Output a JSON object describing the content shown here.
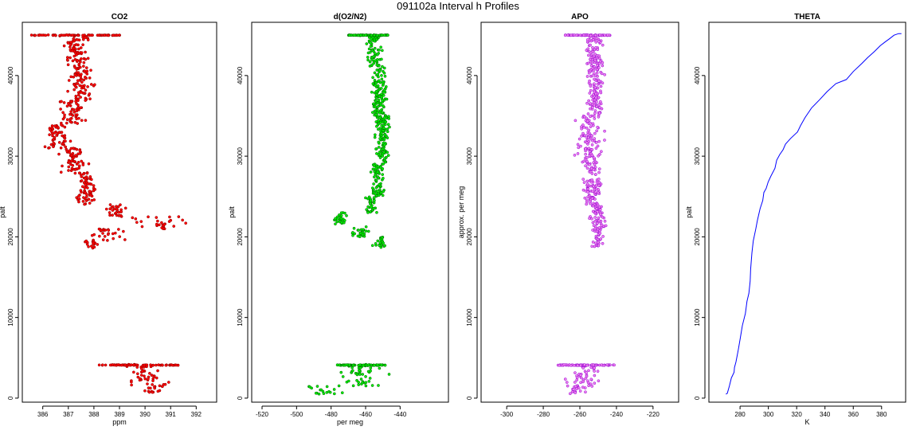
{
  "figure_title": "091102a   Interval h Profiles",
  "chart_data": [
    {
      "type": "scatter",
      "title": "CO2",
      "xlabel": "ppm",
      "ylabel": "palt",
      "xlim": [
        385.2,
        392.8
      ],
      "ylim": [
        -500,
        46600
      ],
      "xticks": [
        386,
        387,
        388,
        389,
        390,
        391,
        392
      ],
      "yticks": [
        0,
        10000,
        20000,
        30000,
        40000
      ],
      "color": "#ff0000",
      "outline": "#8b0000",
      "segments": [
        {
          "y": [
            44500,
            45000
          ],
          "xc": 387.3,
          "spread": 1.0
        },
        {
          "y": [
            41000,
            44500
          ],
          "xc": 387.3,
          "spread": 0.55
        },
        {
          "y": [
            37000,
            41000
          ],
          "xc": 387.5,
          "spread": 0.6
        },
        {
          "y": [
            34000,
            37000
          ],
          "xc": 387.2,
          "spread": 0.6
        },
        {
          "y": [
            31000,
            34000
          ],
          "xc": 386.6,
          "spread": 0.6
        },
        {
          "y": [
            28000,
            31000
          ],
          "xc": 387.2,
          "spread": 0.6
        },
        {
          "y": [
            26000,
            28000
          ],
          "xc": 387.7,
          "spread": 0.45
        },
        {
          "y": [
            24000,
            26000
          ],
          "xc": 387.7,
          "spread": 0.5
        },
        {
          "y": [
            22500,
            24000
          ],
          "xc": 388.9,
          "spread": 0.5
        },
        {
          "y": [
            21000,
            22500
          ],
          "xc": 390.5,
          "spread": 1.3
        },
        {
          "y": [
            19500,
            21000
          ],
          "xc": 388.5,
          "spread": 0.9
        },
        {
          "y": [
            18600,
            19500
          ],
          "xc": 387.9,
          "spread": 0.5
        },
        {
          "y": [
            3500,
            4200
          ],
          "xc": 389.6,
          "spread": 0.8
        },
        {
          "y": [
            1500,
            3500
          ],
          "xc": 390.0,
          "spread": 1.0
        },
        {
          "y": [
            700,
            1500
          ],
          "xc": 390.3,
          "spread": 0.9
        }
      ],
      "bands": [
        {
          "y": 45000,
          "x": [
            385.5,
            389.1
          ]
        },
        {
          "y": 4100,
          "x": [
            388.2,
            391.3
          ]
        }
      ]
    },
    {
      "type": "scatter",
      "title": "d(O2/N2)",
      "xlabel": "per meg",
      "ylabel": "palt",
      "xlim": [
        -526,
        -412
      ],
      "ylim": [
        -500,
        46600
      ],
      "xticks": [
        -520,
        -500,
        -480,
        -460,
        -440
      ],
      "yticks": [
        0,
        10000,
        20000,
        30000,
        40000
      ],
      "color": "#00ee00",
      "outline": "#006400",
      "segments": [
        {
          "y": [
            41000,
            45000
          ],
          "xc": -455,
          "spread": 5
        },
        {
          "y": [
            35000,
            41000
          ],
          "xc": -452,
          "spread": 5
        },
        {
          "y": [
            29000,
            35000
          ],
          "xc": -450,
          "spread": 6
        },
        {
          "y": [
            25000,
            29000
          ],
          "xc": -453,
          "spread": 5
        },
        {
          "y": [
            23000,
            25000
          ],
          "xc": -457,
          "spread": 4
        },
        {
          "y": [
            21500,
            23000
          ],
          "xc": -474,
          "spread": 6
        },
        {
          "y": [
            20000,
            21500
          ],
          "xc": -463,
          "spread": 6
        },
        {
          "y": [
            18600,
            20000
          ],
          "xc": -452,
          "spread": 4
        },
        {
          "y": [
            3500,
            4200
          ],
          "xc": -463,
          "spread": 10
        },
        {
          "y": [
            1500,
            3500
          ],
          "xc": -462,
          "spread": 15
        },
        {
          "y": [
            500,
            1500
          ],
          "xc": -485,
          "spread": 12
        }
      ],
      "bands": [
        {
          "y": 45000,
          "x": [
            -470,
            -447
          ]
        },
        {
          "y": 4100,
          "x": [
            -477,
            -448
          ]
        }
      ]
    },
    {
      "type": "scatter",
      "title": "APO",
      "xlabel": "",
      "ylabel": "approx. per meg",
      "xlim": [
        -314,
        -206
      ],
      "ylim": [
        -500,
        46600
      ],
      "xticks": [
        -300,
        -280,
        -260,
        -240,
        -220
      ],
      "yticks": [
        0,
        10000,
        20000,
        30000,
        40000
      ],
      "color": "#ee82ee",
      "outline": "#9400d3",
      "segments": [
        {
          "y": [
            41000,
            45000
          ],
          "xc": -252,
          "spread": 6
        },
        {
          "y": [
            35000,
            41000
          ],
          "xc": -252,
          "spread": 6
        },
        {
          "y": [
            29000,
            35000
          ],
          "xc": -255,
          "spread": 8
        },
        {
          "y": [
            24000,
            29000
          ],
          "xc": -253,
          "spread": 6
        },
        {
          "y": [
            18800,
            24000
          ],
          "xc": -250,
          "spread": 5
        },
        {
          "y": [
            3500,
            4200
          ],
          "xc": -257,
          "spread": 10
        },
        {
          "y": [
            1500,
            3500
          ],
          "xc": -258,
          "spread": 12
        },
        {
          "y": [
            500,
            1500
          ],
          "xc": -262,
          "spread": 10
        }
      ],
      "bands": [
        {
          "y": 45000,
          "x": [
            -269,
            -243
          ]
        },
        {
          "y": 4100,
          "x": [
            -272,
            -241
          ]
        }
      ]
    },
    {
      "type": "line",
      "title": "THETA",
      "xlabel": "K",
      "ylabel": "palt",
      "xlim": [
        258,
        397
      ],
      "ylim": [
        -500,
        46600
      ],
      "xticks": [
        280,
        300,
        320,
        340,
        360,
        380
      ],
      "yticks": [
        0,
        10000,
        20000,
        30000,
        40000
      ],
      "color": "#0000ff",
      "x": [
        270.0,
        271.0,
        272.5,
        274.0,
        275.5,
        276.0,
        277.0,
        278.5,
        280.0,
        282.0,
        283.5,
        285.0,
        286.0,
        287.0,
        287.5,
        288.5,
        289.5,
        291.0,
        292.5,
        294.0,
        296.0,
        297.0,
        298.5,
        299.5,
        302.0,
        304.0,
        306.0,
        308.0,
        310.0,
        312.0,
        316.0,
        320.0,
        323.0,
        326.0,
        331.0,
        336.0,
        342.0,
        348.0,
        355.0,
        360.0,
        366.0,
        370.0,
        375.0,
        379.0,
        383.0,
        386.0,
        389.0,
        392.0,
        394.0
      ],
      "y": [
        500,
        600,
        1500,
        2500,
        3200,
        3800,
        4500,
        6000,
        7500,
        9000,
        10500,
        12000,
        13000,
        14500,
        16000,
        18000,
        19500,
        21000,
        22000,
        23500,
        24500,
        25500,
        26000,
        26800,
        27500,
        28500,
        29500,
        30200,
        30800,
        31500,
        32200,
        33000,
        33800,
        34800,
        36000,
        37000,
        38000,
        39000,
        39500,
        40500,
        41500,
        42200,
        43000,
        43700,
        44200,
        44600,
        45000,
        45200,
        45200
      ]
    }
  ]
}
